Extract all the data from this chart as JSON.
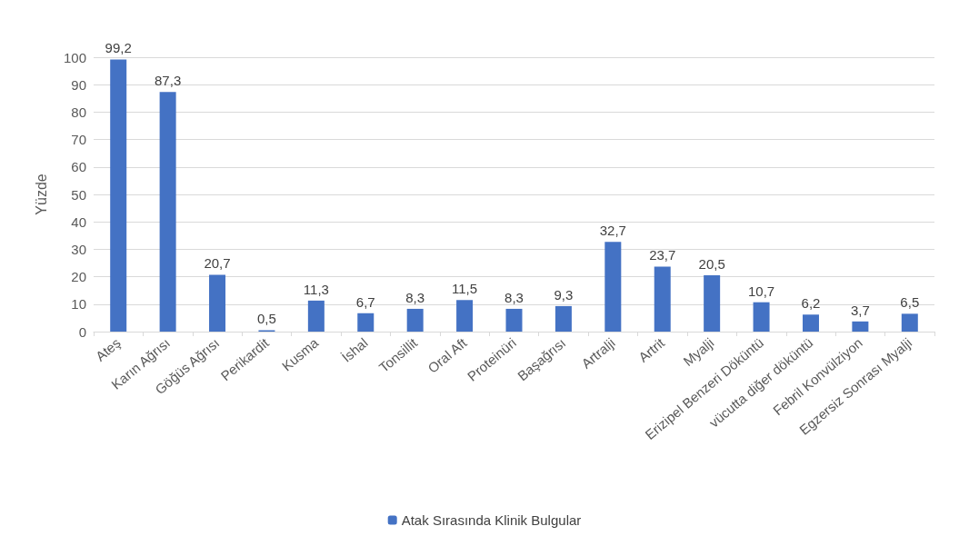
{
  "chart_data": {
    "type": "bar",
    "ylabel": "Yüzde",
    "categories": [
      "Ateş",
      "Karın Ağrısı",
      "Göğüs Ağrısı",
      "Perikardit",
      "Kusma",
      "İshal",
      "Tonsillit",
      "Oral Aft",
      "Proteinüri",
      "Başağrısı",
      "Artralji",
      "Artrit",
      "Myalji",
      "Erizipel Benzeri Döküntü",
      "vücutta diğer döküntü",
      "Febril Konvülziyon",
      "Egzersiz Sonrası Myalji"
    ],
    "series": [
      {
        "name": "Atak Sırasında Klinik Bulgular",
        "color": "#4472c4",
        "values": [
          99.2,
          87.3,
          20.7,
          0.5,
          11.3,
          6.7,
          8.3,
          11.5,
          8.3,
          9.3,
          32.7,
          23.7,
          20.5,
          10.7,
          6.2,
          3.7,
          6.5
        ],
        "value_labels": [
          "99,2",
          "87,3",
          "20,7",
          "0,5",
          "11,3",
          "6,7",
          "8,3",
          "11,5",
          "8,3",
          "9,3",
          "32,7",
          "23,7",
          "20,5",
          "10,7",
          "6,2",
          "3,7",
          "6,5"
        ]
      }
    ],
    "ylim": [
      0,
      100
    ],
    "yticks": [
      0,
      10,
      20,
      30,
      40,
      50,
      60,
      70,
      80,
      90,
      100
    ],
    "grid": "y",
    "legend": "bottom"
  }
}
